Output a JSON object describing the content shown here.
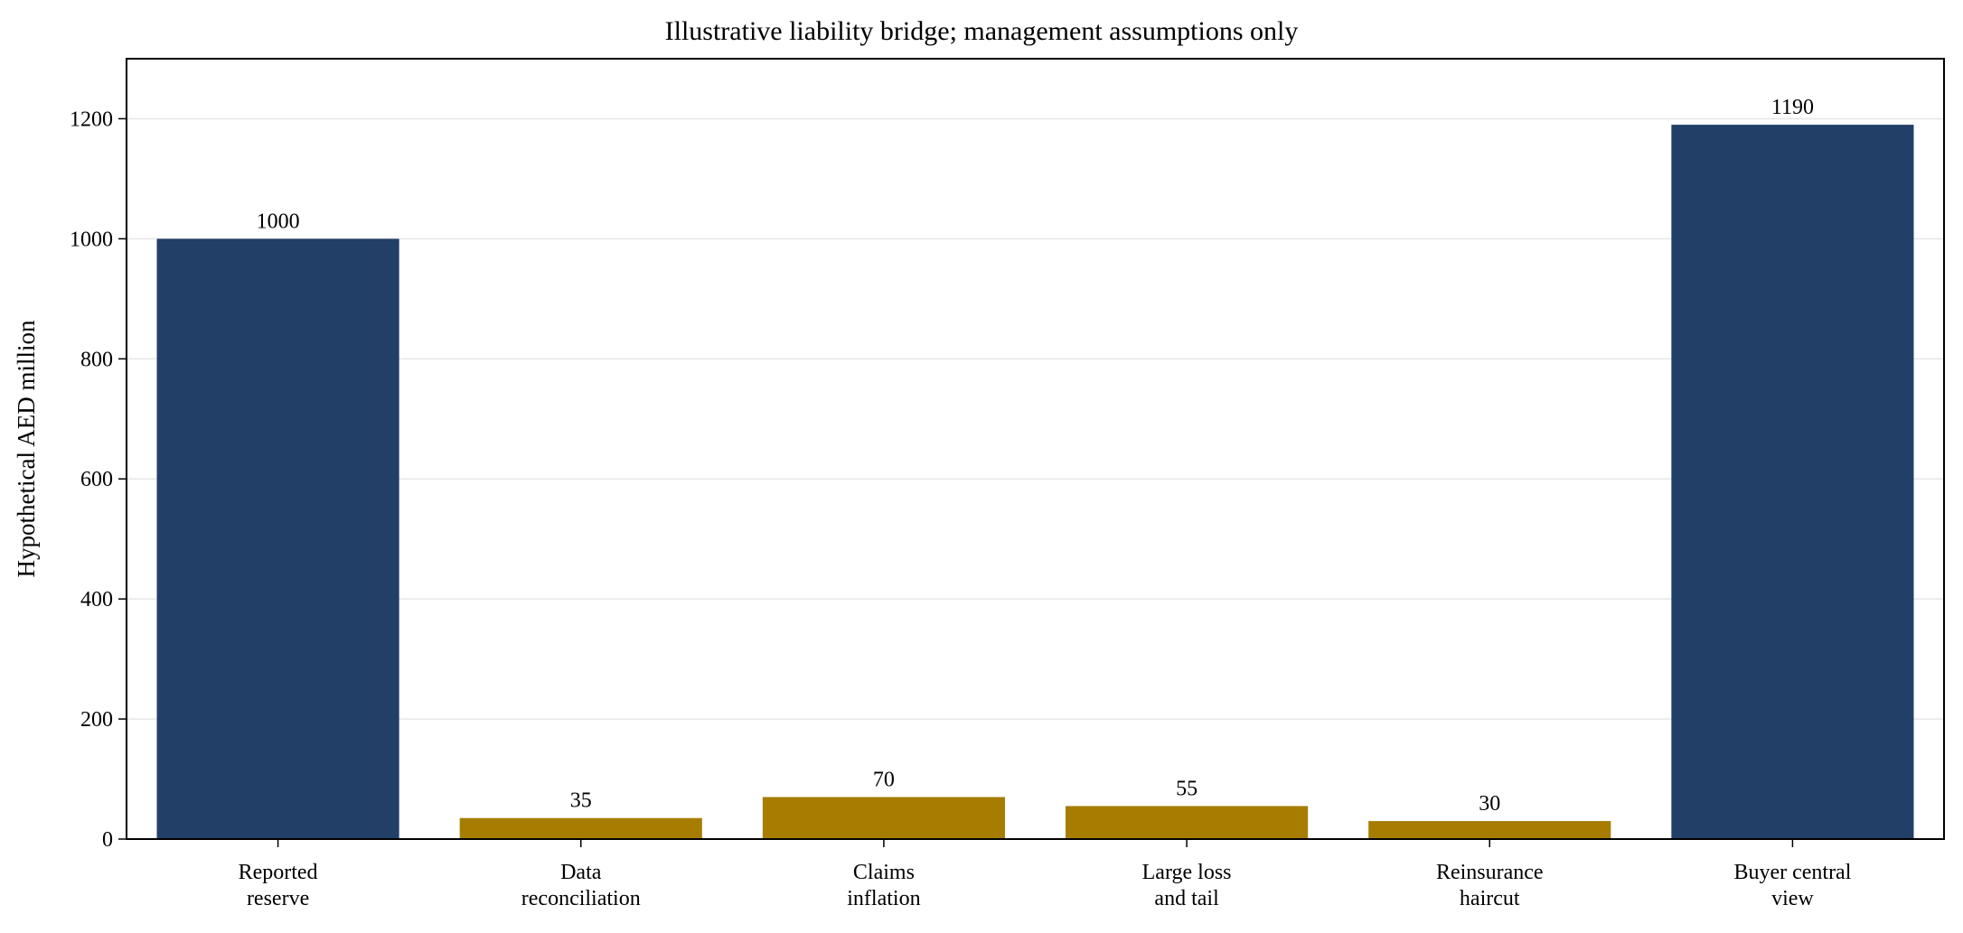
{
  "chart_data": {
    "type": "bar",
    "title": "Illustrative liability bridge; management assumptions only",
    "xlabel": "",
    "ylabel": "Hypothetical AED million",
    "categories": [
      [
        "Reported",
        "reserve"
      ],
      [
        "Data",
        "reconciliation"
      ],
      [
        "Claims",
        "inflation"
      ],
      [
        "Large loss",
        "and tail"
      ],
      [
        "Reinsurance",
        "haircut"
      ],
      [
        "Buyer central",
        "view"
      ]
    ],
    "values": [
      1000,
      35,
      70,
      55,
      30,
      1190
    ],
    "value_labels": [
      "1000",
      "35",
      "70",
      "55",
      "30",
      "1190"
    ],
    "bar_colors": [
      "#223f68",
      "#a67d00",
      "#a67d00",
      "#a67d00",
      "#a67d00",
      "#223f68"
    ],
    "ylim": [
      0,
      1300
    ],
    "yticks": [
      0,
      200,
      400,
      600,
      800,
      1000,
      1200
    ],
    "ytick_labels": [
      "0",
      "200",
      "400",
      "600",
      "800",
      "1000",
      "1200"
    ],
    "grid": true,
    "grid_axis": "y",
    "grid_color": "#e6e6e6",
    "legend": "none"
  }
}
